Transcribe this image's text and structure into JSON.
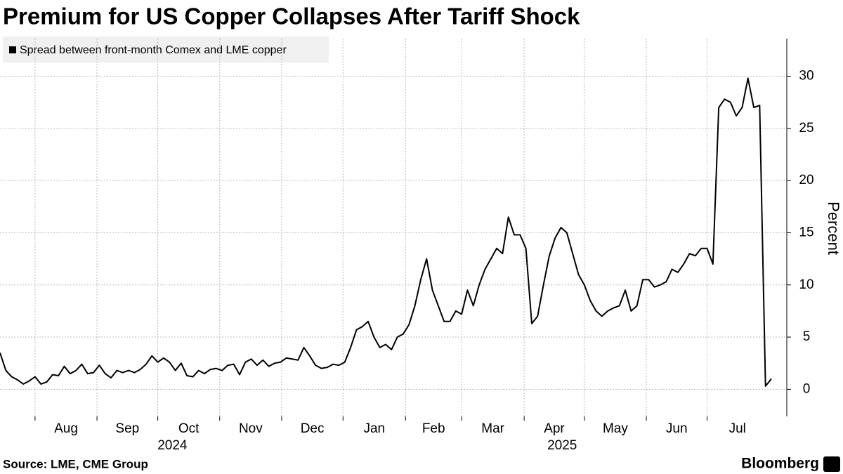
{
  "chart_data": {
    "type": "line",
    "title": "Premium for US Copper Collapses After Tariff Shock",
    "series": [
      {
        "name": "Spread between front-month Comex and LME copper",
        "color": "#000000",
        "values": [
          3.5,
          1.8,
          1.2,
          0.9,
          0.5,
          0.8,
          1.2,
          0.5,
          0.7,
          1.4,
          1.3,
          2.2,
          1.5,
          1.8,
          2.4,
          1.5,
          1.6,
          2.3,
          1.5,
          1.1,
          1.8,
          1.6,
          1.8,
          1.6,
          1.9,
          2.4,
          3.2,
          2.6,
          3.0,
          2.6,
          1.8,
          2.5,
          1.3,
          1.2,
          1.8,
          1.5,
          1.9,
          2.0,
          1.8,
          2.3,
          2.4,
          1.4,
          2.6,
          2.9,
          2.3,
          2.8,
          2.2,
          2.5,
          2.6,
          3.0,
          2.9,
          2.8,
          4.0,
          3.2,
          2.3,
          2.0,
          2.1,
          2.4,
          2.3,
          2.6,
          4.0,
          5.7,
          6.0,
          6.5,
          5.0,
          4.0,
          4.3,
          3.8,
          5.0,
          5.3,
          6.2,
          8.0,
          10.5,
          12.5,
          9.5,
          8.0,
          6.5,
          6.5,
          7.5,
          7.2,
          9.5,
          8.0,
          10.0,
          11.5,
          12.5,
          13.5,
          13.0,
          16.5,
          14.8,
          14.8,
          13.5,
          6.3,
          7.0,
          10.0,
          12.8,
          14.5,
          15.5,
          15.0,
          13.0,
          11.0,
          10.0,
          8.5,
          7.5,
          7.0,
          7.5,
          7.8,
          8.0,
          9.5,
          7.5,
          8.0,
          10.5,
          10.5,
          9.8,
          10.0,
          10.3,
          11.5,
          11.2,
          12.0,
          13.0,
          12.8,
          13.5,
          13.5,
          12.0,
          27.0,
          27.8,
          27.5,
          26.2,
          27.0,
          29.8,
          27.0,
          27.2,
          0.3,
          1.0
        ]
      }
    ],
    "xlim": [
      0,
      132
    ],
    "xticks": [
      {
        "value": 6,
        "label": "Aug"
      },
      {
        "value": 16.6,
        "label": "Sep"
      },
      {
        "value": 27,
        "label": "Oct"
      },
      {
        "value": 37.6,
        "label": "Nov"
      },
      {
        "value": 48.2,
        "label": "Dec"
      },
      {
        "value": 58.7,
        "label": "Jan"
      },
      {
        "value": 69.4,
        "label": "Feb"
      },
      {
        "value": 79,
        "label": "Mar"
      },
      {
        "value": 89.7,
        "label": "Apr"
      },
      {
        "value": 100,
        "label": "May"
      },
      {
        "value": 110.6,
        "label": "Jun"
      },
      {
        "value": 121,
        "label": "Jul"
      }
    ],
    "year_labels": [
      {
        "value": 29.5,
        "label": "2024"
      },
      {
        "value": 96.2,
        "label": "2025"
      }
    ],
    "ylim": [
      -2.6,
      33.6
    ],
    "yticks": [
      0,
      5,
      10,
      15,
      20,
      25,
      30
    ],
    "ylabel": "Percent",
    "grid": true,
    "source": "Source: LME, CME Group",
    "brand": "Bloomberg"
  }
}
